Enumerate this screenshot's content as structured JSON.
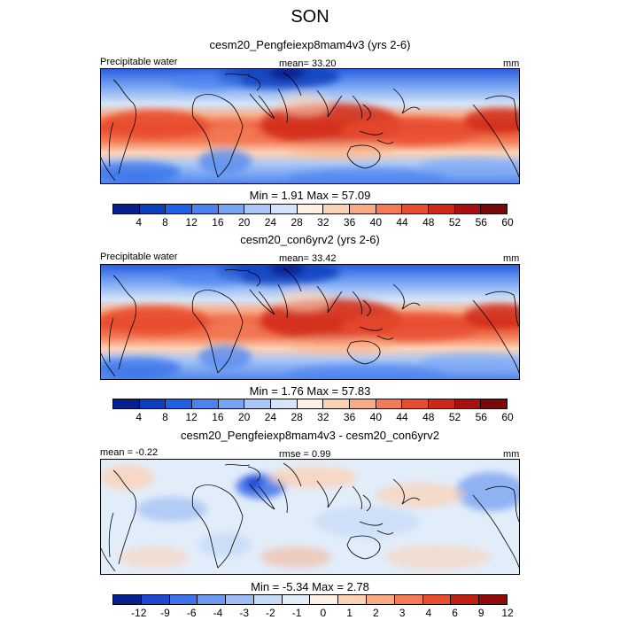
{
  "title": "SON",
  "palette_precip": [
    "#08208f",
    "#0a3fbd",
    "#1e60e6",
    "#4a82ef",
    "#78a5f3",
    "#a9c6f6",
    "#d5e4f8",
    "#fdf0e4",
    "#fcd2b7",
    "#f9ab86",
    "#f37c57",
    "#e84d2f",
    "#d02818",
    "#a90f0f",
    "#7a0808"
  ],
  "palette_diff": [
    "#08208f",
    "#1e48d0",
    "#3e72ea",
    "#6c98f1",
    "#9dbdf4",
    "#c6dbf7",
    "#e2edfa",
    "#fdf0e4",
    "#fcd2b7",
    "#f9ab86",
    "#f37c57",
    "#e84d2f",
    "#c21f14",
    "#8f0b0b"
  ],
  "panels": [
    {
      "title": "cesm20_Pengfeiexp8mam4v3 (yrs 2-6)",
      "left_label": "Precipitable water",
      "center_label": "mean=  33.20",
      "units": "mm",
      "min": "1.91",
      "max": "57.09",
      "min_label": "Min =",
      "max_label": "Max =",
      "ticks": [
        "4",
        "8",
        "12",
        "16",
        "20",
        "24",
        "28",
        "32",
        "36",
        "40",
        "44",
        "48",
        "52",
        "56",
        "60"
      ]
    },
    {
      "title": "cesm20_con6yrv2 (yrs 2-6)",
      "left_label": "Precipitable water",
      "center_label": "mean=  33.42",
      "units": "mm",
      "min": "1.76",
      "max": "57.83",
      "min_label": "Min =",
      "max_label": "Max =",
      "ticks": [
        "4",
        "8",
        "12",
        "16",
        "20",
        "24",
        "28",
        "32",
        "36",
        "40",
        "44",
        "48",
        "52",
        "56",
        "60"
      ]
    },
    {
      "title": "cesm20_Pengfeiexp8mam4v3 - cesm20_con6yrv2",
      "left_label": "mean =  -0.22",
      "center_label": "rmse =   0.99",
      "units": "mm",
      "min": "-5.34",
      "max": "2.78",
      "min_label": "Min =",
      "max_label": "Max =",
      "ticks": [
        "-12",
        "-9",
        "-6",
        "-4",
        "-3",
        "-2",
        "-1",
        "0",
        "1",
        "2",
        "3",
        "4",
        "6",
        "9",
        "12"
      ]
    }
  ]
}
